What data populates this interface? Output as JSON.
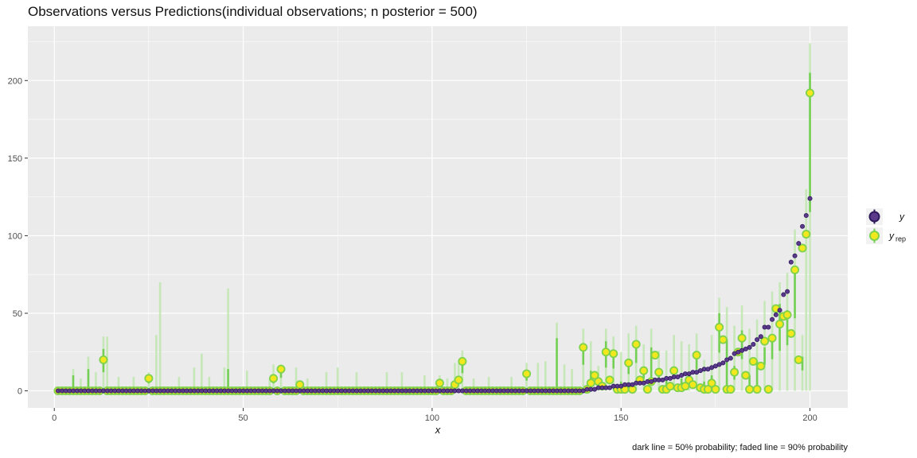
{
  "chart_data": {
    "type": "scatter",
    "title": "Observations versus Predictions(individual observations; n posterior = 500)",
    "xlabel": "x",
    "ylabel": "",
    "xlim": [
      -7,
      210
    ],
    "ylim": [
      -11,
      235
    ],
    "x_ticks": [
      0,
      50,
      100,
      150,
      200
    ],
    "y_ticks": [
      0,
      50,
      100,
      150,
      200
    ],
    "x_tick_labels": [
      "0",
      "50",
      "100",
      "150",
      "200"
    ],
    "y_tick_labels": [
      "0",
      "50",
      "100",
      "150",
      "200"
    ],
    "caption": "dark line = 50% probability; faded line = 90% probability",
    "legend": {
      "position": "right",
      "entries": [
        {
          "key": "y",
          "label": "y",
          "sub": ""
        },
        {
          "key": "yrep",
          "label": "y",
          "sub": "rep"
        }
      ]
    },
    "colors": {
      "y_fill": "#5b3a8c",
      "y_stroke": "#2f1a5c",
      "yrep_fill": "#f3e81e",
      "yrep_stroke": "#7fd24a",
      "interval_dark": "#74d055",
      "interval_faded": "#bfe6ae",
      "panel_bg": "#ebebeb",
      "grid": "#ffffff"
    },
    "y_observed_nonzero": {
      "x": [
        141,
        142,
        143,
        144,
        145,
        146,
        147,
        148,
        149,
        150,
        151,
        152,
        153,
        154,
        155,
        156,
        157,
        158,
        159,
        160,
        161,
        162,
        163,
        164,
        165,
        166,
        167,
        168,
        169,
        170,
        171,
        172,
        173,
        174,
        175,
        176,
        177,
        178,
        179,
        180,
        181,
        182,
        183,
        184,
        185,
        186,
        187,
        188,
        189,
        190,
        191,
        192,
        193,
        194,
        195,
        196,
        197,
        198,
        199,
        200
      ],
      "y": [
        1,
        1,
        1,
        2,
        2,
        2,
        2,
        3,
        3,
        3,
        4,
        4,
        4,
        5,
        5,
        5,
        6,
        6,
        7,
        7,
        7,
        8,
        8,
        9,
        9,
        10,
        11,
        11,
        12,
        12,
        13,
        14,
        14,
        15,
        16,
        17,
        18,
        20,
        21,
        24,
        25,
        26,
        27,
        28,
        30,
        33,
        35,
        41,
        41,
        46,
        49,
        52,
        62,
        64,
        83,
        87,
        95,
        106,
        113,
        124
      ]
    },
    "y_observed_zero_through": 140,
    "y_rep_nonzero": {
      "x": [
        13,
        25,
        58,
        60,
        65,
        102,
        106,
        107,
        108,
        125,
        140,
        141,
        142,
        143,
        144,
        145,
        146,
        147,
        148,
        149,
        150,
        151,
        152,
        153,
        154,
        155,
        156,
        157,
        158,
        159,
        160,
        161,
        162,
        163,
        164,
        165,
        166,
        167,
        168,
        169,
        170,
        171,
        172,
        173,
        174,
        175,
        176,
        177,
        178,
        179,
        180,
        181,
        182,
        183,
        184,
        185,
        186,
        187,
        188,
        189,
        190,
        191,
        192,
        193,
        194,
        195,
        196,
        197,
        198,
        199,
        200
      ],
      "y": [
        20,
        8,
        8,
        14,
        4,
        5,
        4,
        7,
        19,
        11,
        28,
        1,
        5,
        10,
        6,
        3,
        25,
        7,
        24,
        1,
        1,
        1,
        18,
        1,
        30,
        7,
        13,
        1,
        6,
        23,
        12,
        1,
        1,
        3,
        13,
        2,
        2,
        3,
        7,
        4,
        23,
        2,
        1,
        1,
        5,
        1,
        41,
        33,
        1,
        1,
        12,
        25,
        34,
        10,
        1,
        19,
        1,
        16,
        32,
        1,
        34,
        53,
        43,
        48,
        49,
        37,
        78,
        20,
        92,
        101,
        192
      ]
    },
    "y_rep_hi50_nonzero": {
      "x": [
        5,
        9,
        13,
        25,
        46,
        58,
        60,
        102,
        106,
        108,
        125,
        133,
        140,
        142,
        144,
        146,
        148,
        150,
        152,
        154,
        156,
        158,
        160,
        162,
        164,
        166,
        168,
        170,
        172,
        174,
        176,
        178,
        180,
        182,
        184,
        186,
        188,
        190,
        192,
        194,
        196,
        198,
        200
      ],
      "y": [
        10,
        14,
        27,
        8,
        14,
        8,
        14,
        5,
        4,
        19,
        11,
        34,
        28,
        13,
        8,
        32,
        24,
        6,
        18,
        30,
        14,
        28,
        12,
        9,
        14,
        8,
        11,
        23,
        6,
        10,
        50,
        33,
        16,
        39,
        10,
        19,
        28,
        34,
        56,
        52,
        80,
        22,
        205
      ]
    },
    "y_rep_hi90_nonzero": {
      "x": [
        5,
        7,
        9,
        11,
        13,
        14,
        17,
        21,
        25,
        27,
        28,
        33,
        37,
        39,
        41,
        45,
        46,
        51,
        57,
        58,
        60,
        64,
        67,
        72,
        75,
        80,
        88,
        92,
        98,
        102,
        104,
        106,
        107,
        108,
        111,
        115,
        121,
        125,
        128,
        130,
        133,
        135,
        137,
        140,
        142,
        144,
        146,
        148,
        150,
        152,
        154,
        156,
        158,
        160,
        162,
        164,
        166,
        168,
        170,
        172,
        174,
        176,
        178,
        180,
        182,
        184,
        186,
        188,
        190,
        192,
        194,
        196,
        198,
        199,
        200
      ],
      "y": [
        14,
        8,
        22,
        12,
        35,
        35,
        9,
        9,
        12,
        36,
        70,
        9,
        15,
        24,
        9,
        15,
        66,
        13,
        8,
        17,
        17,
        15,
        8,
        12,
        15,
        12,
        12,
        12,
        10,
        10,
        8,
        18,
        18,
        26,
        8,
        9,
        9,
        18,
        18,
        19,
        44,
        17,
        14,
        40,
        32,
        16,
        40,
        35,
        25,
        37,
        42,
        30,
        40,
        26,
        26,
        36,
        32,
        30,
        37,
        20,
        36,
        60,
        54,
        42,
        55,
        40,
        46,
        58,
        64,
        70,
        76,
        104,
        36,
        130,
        224
      ]
    }
  }
}
